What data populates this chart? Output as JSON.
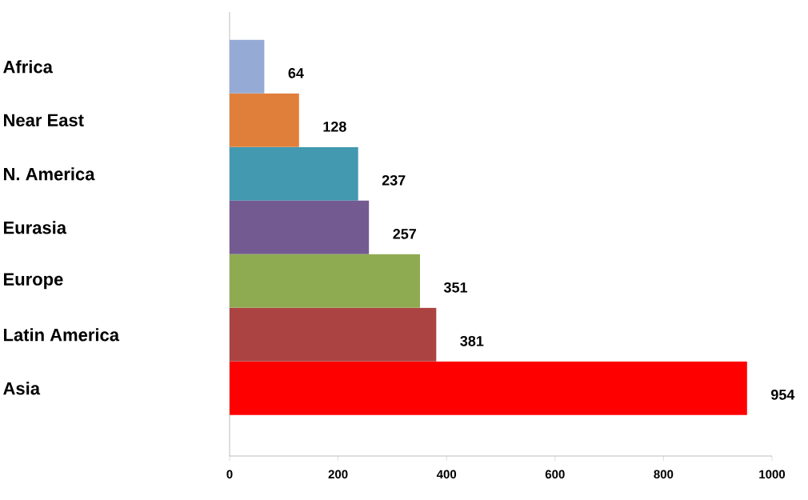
{
  "chart_data": {
    "type": "bar",
    "orientation": "horizontal",
    "categories": [
      "Africa",
      "Near East",
      "N. America",
      "Eurasia",
      "Europe",
      "Latin America",
      "Asia"
    ],
    "values": [
      64,
      128,
      237,
      257,
      351,
      381,
      954
    ],
    "colors": [
      "#95abd5",
      "#e07f3a",
      "#4299b0",
      "#735b91",
      "#8fab52",
      "#ac4343",
      "#ff0000"
    ],
    "xlim": [
      0,
      1000
    ],
    "xticks": [
      0,
      200,
      400,
      600,
      800,
      1000
    ],
    "data_labels": true,
    "grid": false
  }
}
